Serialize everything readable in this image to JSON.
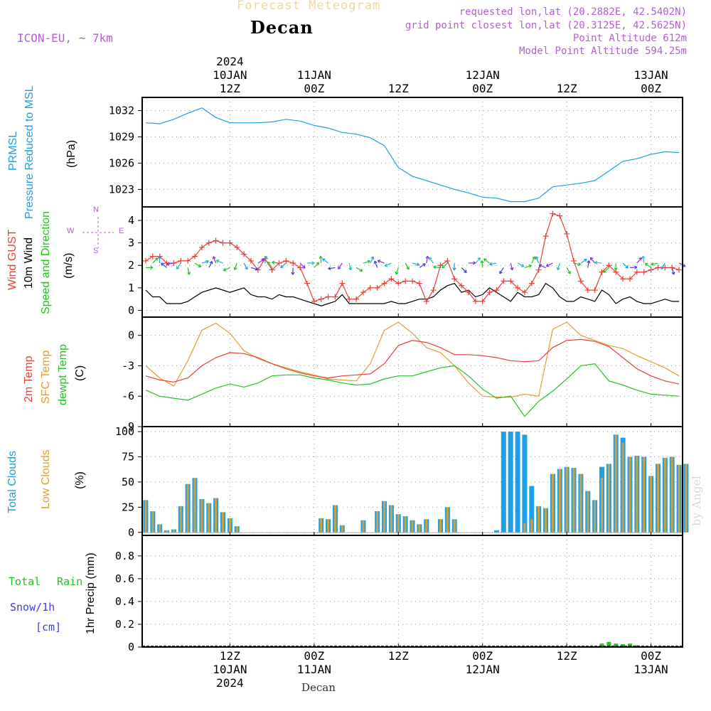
{
  "header": {
    "title_faded": "Forecast Meteogram",
    "location": "Decan",
    "model": "ICON-EU, ~ 7km",
    "requested": "requested lon,lat (20.2882E, 42.5402N)",
    "grid_point": "grid point closest lon,lat (20.3125E, 42.5625N)",
    "point_altitude": "Point Altitude 612m",
    "model_altitude": "Model Point Altitude 594.25m",
    "watermark": "by Angel",
    "footer_location": "Decan"
  },
  "time_axis": {
    "top": [
      {
        "lines": [
          "2024",
          "10JAN",
          "12Z"
        ],
        "hour": 12
      },
      {
        "lines": [
          "11JAN",
          "00Z"
        ],
        "hour": 24
      },
      {
        "lines": [
          "12Z"
        ],
        "hour": 36
      },
      {
        "lines": [
          "12JAN",
          "00Z"
        ],
        "hour": 48
      },
      {
        "lines": [
          "12Z"
        ],
        "hour": 60
      },
      {
        "lines": [
          "13JAN",
          "00Z"
        ],
        "hour": 72
      }
    ],
    "bottom": [
      {
        "lines": [
          "12Z",
          "10JAN",
          "2024"
        ],
        "hour": 12
      },
      {
        "lines": [
          "00Z",
          "11JAN"
        ],
        "hour": 24
      },
      {
        "lines": [
          "12Z"
        ],
        "hour": 36
      },
      {
        "lines": [
          "00Z",
          "12JAN"
        ],
        "hour": 48
      },
      {
        "lines": [
          "12Z"
        ],
        "hour": 60
      },
      {
        "lines": [
          "00Z",
          "13JAN"
        ],
        "hour": 72
      }
    ]
  },
  "panel_labels": {
    "pressure": [
      {
        "text": "PRMSL",
        "color": "#1ea0e6"
      },
      {
        "text": "Pressure Reduced to MSL",
        "color": "#1ea0e6"
      },
      {
        "text": "(hPa)",
        "color": "#000000"
      }
    ],
    "wind": [
      {
        "text": "Wind GUST",
        "color": "#e8403a"
      },
      {
        "text": "10m Wind",
        "color": "#000000"
      },
      {
        "text": "Speed and Direction",
        "color": "#26c026"
      },
      {
        "text": "(m/s)",
        "color": "#000000"
      }
    ],
    "temp": [
      {
        "text": "2m Temp",
        "color": "#e8403a"
      },
      {
        "text": "SFC Temp",
        "color": "#e0a030"
      },
      {
        "text": "dewpt Temp",
        "color": "#26c026"
      },
      {
        "text": "(C)",
        "color": "#000000"
      }
    ],
    "clouds": [
      {
        "text": "Total Clouds",
        "color": "#1ea0e6"
      },
      {
        "text": "Low Clouds",
        "color": "#e0a030"
      },
      {
        "text": "(%)",
        "color": "#000000"
      }
    ],
    "precip": {
      "total": "Total",
      "rain": "Rain",
      "snow": "Snow/1h",
      "cm": "[cm]",
      "axis": "1hr Precip (mm)"
    },
    "compass": {
      "n": "N",
      "s": "S",
      "w": "W",
      "e": "E"
    }
  },
  "colors": {
    "pressure": "#1ea0e6",
    "gust": "#e8403a",
    "wind10m": "#000000",
    "temp2m": "#e8403a",
    "sfc": "#e0a030",
    "dewpt": "#26c026",
    "total_clouds": "#1ea0e6",
    "low_clouds": "#d0a040",
    "rain": "#26c026",
    "snow": "#4040e0"
  },
  "chart_data": [
    {
      "type": "line",
      "x_range_hours": [
        -0.5,
        76.5
      ],
      "ylim": [
        1021,
        1033.5
      ],
      "yticks": [
        1023,
        1026,
        1029,
        1032
      ],
      "grid": true,
      "series": [
        {
          "name": "PRMSL",
          "x": [
            0,
            2,
            4,
            6,
            8,
            10,
            12,
            14,
            16,
            18,
            20,
            22,
            24,
            26,
            28,
            30,
            32,
            34,
            36,
            38,
            40,
            42,
            44,
            46,
            48,
            50,
            52,
            54,
            56,
            58,
            60,
            62,
            64,
            66,
            68,
            70,
            72,
            74,
            76
          ],
          "values": [
            1030.6,
            1030.5,
            1031.0,
            1031.7,
            1032.3,
            1031.2,
            1030.6,
            1030.6,
            1030.6,
            1030.7,
            1031.0,
            1030.8,
            1030.3,
            1030.0,
            1029.5,
            1029.3,
            1028.9,
            1028.0,
            1025.5,
            1024.5,
            1024.0,
            1023.5,
            1023.0,
            1022.6,
            1022.1,
            1022.0,
            1021.6,
            1021.6,
            1022.0,
            1023.3,
            1023.5,
            1023.7,
            1024.0,
            1025.1,
            1026.2,
            1026.5,
            1027.0,
            1027.3,
            1027.2
          ]
        }
      ]
    },
    {
      "type": "line",
      "ylim": [
        -0.3,
        4.6
      ],
      "yticks": [
        0,
        1,
        2,
        3,
        4
      ],
      "grid": true,
      "series": [
        {
          "name": "Wind GUST",
          "x": [
            0,
            1,
            2,
            3,
            4,
            5,
            6,
            7,
            8,
            9,
            10,
            11,
            12,
            13,
            14,
            15,
            16,
            17,
            18,
            19,
            20,
            21,
            22,
            23,
            24,
            25,
            26,
            27,
            28,
            29,
            30,
            31,
            32,
            33,
            34,
            35,
            36,
            37,
            38,
            39,
            40,
            41,
            42,
            43,
            44,
            45,
            46,
            47,
            48,
            49,
            50,
            51,
            52,
            53,
            54,
            55,
            56,
            57,
            58,
            59,
            60,
            61,
            62,
            63,
            64,
            65,
            66,
            67,
            68,
            69,
            70,
            71,
            72,
            73,
            74,
            75,
            76
          ],
          "values": [
            2.2,
            2.4,
            2.4,
            2.1,
            2.1,
            2.2,
            2.2,
            2.4,
            2.8,
            3.0,
            3.1,
            3.0,
            3.0,
            2.8,
            2.5,
            2.2,
            1.8,
            2.3,
            1.8,
            2.1,
            2.2,
            2.1,
            1.9,
            1.2,
            0.4,
            0.5,
            0.6,
            0.6,
            1.2,
            0.5,
            0.5,
            0.8,
            1.0,
            1.0,
            1.2,
            1.4,
            1.2,
            1.3,
            1.3,
            1.2,
            0.4,
            0.9,
            2.0,
            2.2,
            1.4,
            1.1,
            0.8,
            0.4,
            0.4,
            0.8,
            0.9,
            1.3,
            1.3,
            1.0,
            0.8,
            1.2,
            1.8,
            3.3,
            4.3,
            4.2,
            3.4,
            2.2,
            1.3,
            0.9,
            0.9,
            1.7,
            2.0,
            1.7,
            1.4,
            1.4,
            1.7,
            1.7,
            1.8,
            1.9,
            1.9,
            1.9,
            1.8
          ]
        },
        {
          "name": "10m Wind",
          "x": [
            0,
            1,
            2,
            3,
            4,
            5,
            6,
            7,
            8,
            9,
            10,
            11,
            12,
            13,
            14,
            15,
            16,
            17,
            18,
            19,
            20,
            21,
            22,
            23,
            24,
            25,
            26,
            27,
            28,
            29,
            30,
            31,
            32,
            33,
            34,
            35,
            36,
            37,
            38,
            39,
            40,
            41,
            42,
            43,
            44,
            45,
            46,
            47,
            48,
            49,
            50,
            51,
            52,
            53,
            54,
            55,
            56,
            57,
            58,
            59,
            60,
            61,
            62,
            63,
            64,
            65,
            66,
            67,
            68,
            69,
            70,
            71,
            72,
            73,
            74,
            75,
            76
          ],
          "values": [
            0.9,
            0.6,
            0.6,
            0.3,
            0.3,
            0.3,
            0.4,
            0.6,
            0.8,
            0.9,
            1.0,
            0.9,
            0.8,
            0.9,
            1.0,
            0.7,
            0.6,
            0.6,
            0.5,
            0.7,
            0.6,
            0.6,
            0.5,
            0.4,
            0.3,
            0.2,
            0.3,
            0.4,
            0.7,
            0.3,
            0.3,
            0.3,
            0.3,
            0.3,
            0.3,
            0.4,
            0.3,
            0.3,
            0.4,
            0.5,
            0.5,
            0.6,
            0.9,
            1.1,
            1.2,
            0.8,
            0.9,
            0.6,
            0.7,
            1.0,
            0.8,
            0.6,
            0.4,
            0.8,
            0.6,
            0.6,
            0.7,
            1.2,
            1.0,
            0.6,
            0.4,
            0.4,
            0.6,
            0.5,
            0.4,
            0.9,
            0.7,
            0.3,
            0.5,
            0.6,
            0.4,
            0.3,
            0.3,
            0.4,
            0.5,
            0.4,
            0.4
          ]
        }
      ]
    },
    {
      "type": "line",
      "ylim": [
        -9,
        1.8
      ],
      "yticks": [
        -9,
        -6,
        -3,
        0
      ],
      "grid": true,
      "series": [
        {
          "name": "2m Temp",
          "x": [
            0,
            2,
            4,
            6,
            8,
            10,
            12,
            14,
            16,
            18,
            20,
            22,
            24,
            26,
            28,
            30,
            32,
            34,
            36,
            38,
            40,
            42,
            44,
            46,
            48,
            50,
            52,
            54,
            56,
            58,
            60,
            62,
            64,
            66,
            68,
            70,
            72,
            74,
            76
          ],
          "values": [
            -4.0,
            -4.4,
            -4.6,
            -4.2,
            -3.0,
            -2.2,
            -1.7,
            -1.8,
            -2.2,
            -2.8,
            -3.3,
            -3.7,
            -4.0,
            -4.2,
            -4.0,
            -3.9,
            -3.8,
            -2.8,
            -1.0,
            -0.5,
            -0.7,
            -1.2,
            -1.9,
            -1.9,
            -2.0,
            -2.2,
            -2.5,
            -2.6,
            -2.5,
            -1.2,
            -0.5,
            -0.4,
            -0.6,
            -1.1,
            -2.2,
            -3.3,
            -4.0,
            -4.5,
            -4.8
          ]
        },
        {
          "name": "SFC Temp",
          "x": [
            0,
            2,
            4,
            6,
            8,
            10,
            12,
            14,
            16,
            18,
            20,
            22,
            24,
            26,
            28,
            30,
            32,
            34,
            36,
            38,
            40,
            42,
            44,
            46,
            48,
            50,
            52,
            54,
            56,
            58,
            60,
            62,
            64,
            66,
            68,
            70,
            72,
            74,
            76
          ],
          "values": [
            -3.0,
            -4.2,
            -5.0,
            -2.5,
            0.5,
            1.2,
            0.2,
            -1.5,
            -2.3,
            -2.8,
            -3.2,
            -3.6,
            -3.9,
            -4.3,
            -4.4,
            -4.5,
            -2.8,
            0.5,
            1.3,
            0.2,
            -1.2,
            -1.7,
            -3.0,
            -4.7,
            -6.0,
            -6.1,
            -6.1,
            -5.8,
            -6.0,
            0.6,
            1.3,
            0.0,
            -0.5,
            -1.0,
            -1.3,
            -2.0,
            -2.6,
            -3.2,
            -4.0
          ]
        },
        {
          "name": "dewpt Temp",
          "x": [
            0,
            2,
            4,
            6,
            8,
            10,
            12,
            14,
            16,
            18,
            20,
            22,
            24,
            26,
            28,
            30,
            32,
            34,
            36,
            38,
            40,
            42,
            44,
            46,
            48,
            50,
            52,
            54,
            56,
            58,
            60,
            62,
            64,
            66,
            68,
            70,
            72,
            74,
            76
          ],
          "values": [
            -5.4,
            -6.0,
            -6.2,
            -6.4,
            -5.8,
            -5.2,
            -4.8,
            -5.1,
            -4.7,
            -4.0,
            -3.9,
            -3.9,
            -4.2,
            -4.4,
            -4.7,
            -4.9,
            -4.8,
            -4.3,
            -4.0,
            -4.0,
            -3.6,
            -3.2,
            -3.0,
            -4.0,
            -5.3,
            -6.2,
            -6.0,
            -8.0,
            -6.5,
            -5.5,
            -4.3,
            -3.0,
            -2.8,
            -4.5,
            -4.9,
            -5.4,
            -5.8,
            -5.9,
            -6.0
          ]
        }
      ]
    },
    {
      "type": "bar",
      "ylim": [
        -3,
        105
      ],
      "yticks": [
        0,
        25,
        50,
        75,
        100
      ],
      "grid": true,
      "series": [
        {
          "name": "Total Clouds",
          "values": [
            32,
            21,
            8,
            2,
            3,
            26,
            48,
            54,
            33,
            29,
            34,
            20,
            14,
            6,
            0,
            0,
            0,
            0,
            0,
            0,
            0,
            0,
            0,
            0,
            0,
            14,
            13,
            27,
            7,
            0,
            0,
            12,
            0,
            21,
            31,
            27,
            18,
            16,
            12,
            8,
            13,
            0,
            13,
            25,
            13,
            0,
            0,
            0,
            0,
            0,
            2,
            100,
            100,
            100,
            97,
            46,
            26,
            24,
            58,
            63,
            65,
            64,
            58,
            41,
            32,
            65,
            68,
            97,
            94,
            75,
            76,
            75,
            56,
            68,
            74,
            75,
            67,
            68
          ]
        },
        {
          "name": "Low Clouds",
          "values": [
            32,
            21,
            8,
            2,
            3,
            26,
            48,
            54,
            33,
            29,
            34,
            20,
            14,
            6,
            0,
            0,
            0,
            0,
            0,
            0,
            0,
            0,
            0,
            0,
            0,
            14,
            13,
            27,
            7,
            0,
            0,
            12,
            0,
            21,
            31,
            27,
            18,
            16,
            12,
            8,
            13,
            0,
            13,
            25,
            13,
            0,
            0,
            0,
            0,
            0,
            0,
            0,
            0,
            0,
            9,
            13,
            26,
            24,
            58,
            63,
            65,
            64,
            58,
            41,
            32,
            54,
            68,
            97,
            89,
            75,
            76,
            75,
            56,
            68,
            74,
            75,
            67,
            68
          ]
        }
      ]
    },
    {
      "type": "bar",
      "ylim": [
        0,
        0.98
      ],
      "yticks": [
        0,
        0.2,
        0.4,
        0.6,
        0.8
      ],
      "grid": true,
      "series": [
        {
          "name": "Total Rain",
          "x": [
            65,
            66,
            67,
            68,
            69,
            70
          ],
          "values": [
            0.03,
            0.045,
            0.03,
            0.025,
            0.03,
            0.015
          ]
        }
      ]
    }
  ]
}
